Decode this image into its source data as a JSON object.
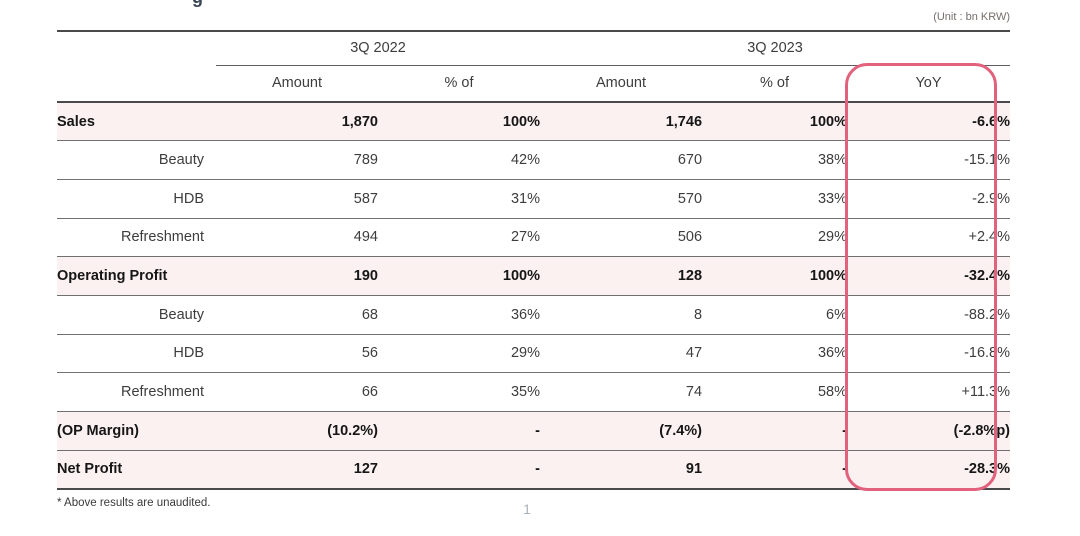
{
  "slide": {
    "title_fragment": "g",
    "unit_note": "(Unit : bn KRW)",
    "footnote": "* Above results are unaudited.",
    "page_number": "1"
  },
  "table": {
    "period_headers": {
      "q2022": "3Q 2022",
      "q2023": "3Q 2023"
    },
    "column_headers": {
      "amount_2022": "Amount",
      "pct_2022": "% of",
      "amount_2023": "Amount",
      "pct_2023": "% of",
      "yoy": "YoY"
    },
    "rows": [
      {
        "label": "Sales",
        "emphasis": true,
        "amount_2022": "1,870",
        "pct_2022": "100%",
        "amount_2023": "1,746",
        "pct_2023": "100%",
        "yoy": "-6.6%"
      },
      {
        "label": "Beauty",
        "emphasis": false,
        "amount_2022": "789",
        "pct_2022": "42%",
        "amount_2023": "670",
        "pct_2023": "38%",
        "yoy": "-15.1%"
      },
      {
        "label": "HDB",
        "emphasis": false,
        "amount_2022": "587",
        "pct_2022": "31%",
        "amount_2023": "570",
        "pct_2023": "33%",
        "yoy": "-2.9%"
      },
      {
        "label": "Refreshment",
        "emphasis": false,
        "amount_2022": "494",
        "pct_2022": "27%",
        "amount_2023": "506",
        "pct_2023": "29%",
        "yoy": "+2.4%"
      },
      {
        "label": "Operating Profit",
        "emphasis": true,
        "amount_2022": "190",
        "pct_2022": "100%",
        "amount_2023": "128",
        "pct_2023": "100%",
        "yoy": "-32.4%"
      },
      {
        "label": "Beauty",
        "emphasis": false,
        "amount_2022": "68",
        "pct_2022": "36%",
        "amount_2023": "8",
        "pct_2023": "6%",
        "yoy": "-88.2%"
      },
      {
        "label": "HDB",
        "emphasis": false,
        "amount_2022": "56",
        "pct_2022": "29%",
        "amount_2023": "47",
        "pct_2023": "36%",
        "yoy": "-16.8%"
      },
      {
        "label": "Refreshment",
        "emphasis": false,
        "amount_2022": "66",
        "pct_2022": "35%",
        "amount_2023": "74",
        "pct_2023": "58%",
        "yoy": "+11.3%"
      },
      {
        "label": "(OP Margin)",
        "emphasis": true,
        "amount_2022": "(10.2%)",
        "pct_2022": "-",
        "amount_2023": "(7.4%)",
        "pct_2023": "-",
        "yoy": "(-2.8%p)"
      },
      {
        "label": "Net Profit",
        "emphasis": true,
        "amount_2022": "127",
        "pct_2022": "-",
        "amount_2023": "91",
        "pct_2023": "-",
        "yoy": "-28.3%"
      }
    ]
  },
  "colors": {
    "highlight_border": "#e2617c",
    "emphasis_row_bg": "#faf1f0"
  }
}
